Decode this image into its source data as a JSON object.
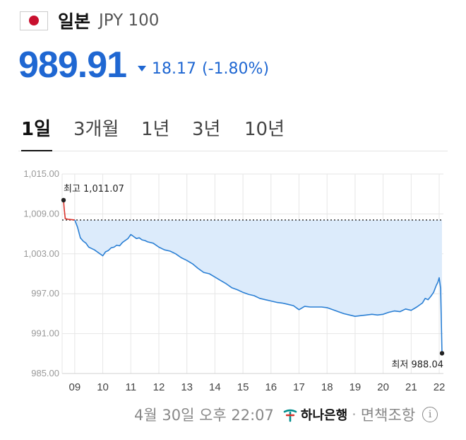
{
  "header": {
    "country": "일본",
    "unit": "JPY 100",
    "flag_icon": "japan-flag-icon"
  },
  "price": {
    "value": "989.91",
    "change": "18.17",
    "change_pct": "(-1.80%)",
    "direction": "down",
    "color": "#1f67d2"
  },
  "tabs": [
    {
      "label": "1일",
      "active": true
    },
    {
      "label": "3개월",
      "active": false
    },
    {
      "label": "1년",
      "active": false
    },
    {
      "label": "3년",
      "active": false
    },
    {
      "label": "10년",
      "active": false
    }
  ],
  "chart_data": {
    "type": "area",
    "y_ticks": [
      "1,015.00",
      "1,009.00",
      "1,003.00",
      "997.00",
      "991.00",
      "985.00"
    ],
    "x_ticks": [
      "09",
      "10",
      "11",
      "12",
      "13",
      "14",
      "15",
      "16",
      "17",
      "18",
      "19",
      "20",
      "21",
      "22"
    ],
    "ylim": [
      985,
      1015
    ],
    "xlim": [
      8.55,
      22.15
    ],
    "reference_value": 1008.08,
    "high_label": "최고 1,011.07",
    "low_label": "최저 988.04",
    "high": {
      "x": 8.6,
      "y": 1011.07
    },
    "low": {
      "x": 22.1,
      "y": 988.04
    },
    "line_color": "#2a7fd4",
    "fill_color": "#dcebfb",
    "pre_open_color": "#d9322b",
    "pre_open_points": [
      [
        8.6,
        1011.07
      ],
      [
        8.62,
        1009.9
      ],
      [
        8.66,
        1008.3
      ],
      [
        8.75,
        1008.2
      ],
      [
        9.0,
        1008.1
      ]
    ],
    "points": [
      [
        9.0,
        1008.1
      ],
      [
        9.1,
        1007.0
      ],
      [
        9.2,
        1005.4
      ],
      [
        9.3,
        1004.9
      ],
      [
        9.4,
        1004.6
      ],
      [
        9.5,
        1004.0
      ],
      [
        9.6,
        1003.8
      ],
      [
        9.7,
        1003.6
      ],
      [
        9.8,
        1003.3
      ],
      [
        9.9,
        1003.0
      ],
      [
        10.0,
        1002.7
      ],
      [
        10.1,
        1003.3
      ],
      [
        10.2,
        1003.5
      ],
      [
        10.3,
        1003.9
      ],
      [
        10.4,
        1004.0
      ],
      [
        10.5,
        1004.3
      ],
      [
        10.6,
        1004.2
      ],
      [
        10.7,
        1004.7
      ],
      [
        10.8,
        1005.0
      ],
      [
        10.9,
        1005.3
      ],
      [
        11.0,
        1005.9
      ],
      [
        11.1,
        1005.6
      ],
      [
        11.2,
        1005.3
      ],
      [
        11.3,
        1005.4
      ],
      [
        11.4,
        1005.1
      ],
      [
        11.5,
        1005.0
      ],
      [
        11.6,
        1004.8
      ],
      [
        11.8,
        1004.6
      ],
      [
        12.0,
        1004.0
      ],
      [
        12.2,
        1003.6
      ],
      [
        12.4,
        1003.4
      ],
      [
        12.6,
        1003.0
      ],
      [
        12.8,
        1002.4
      ],
      [
        13.0,
        1002.0
      ],
      [
        13.2,
        1001.5
      ],
      [
        13.4,
        1000.8
      ],
      [
        13.6,
        1000.2
      ],
      [
        13.8,
        1000.0
      ],
      [
        14.0,
        999.5
      ],
      [
        14.2,
        999.0
      ],
      [
        14.4,
        998.5
      ],
      [
        14.6,
        997.9
      ],
      [
        14.8,
        997.6
      ],
      [
        15.0,
        997.2
      ],
      [
        15.2,
        996.9
      ],
      [
        15.4,
        996.7
      ],
      [
        15.6,
        996.3
      ],
      [
        15.8,
        996.1
      ],
      [
        16.0,
        995.9
      ],
      [
        16.2,
        995.7
      ],
      [
        16.4,
        995.6
      ],
      [
        16.6,
        995.4
      ],
      [
        16.8,
        995.2
      ],
      [
        17.0,
        994.6
      ],
      [
        17.2,
        995.1
      ],
      [
        17.4,
        995.0
      ],
      [
        17.6,
        995.0
      ],
      [
        17.8,
        995.0
      ],
      [
        18.0,
        994.9
      ],
      [
        18.2,
        994.6
      ],
      [
        18.4,
        994.3
      ],
      [
        18.6,
        994.0
      ],
      [
        18.8,
        993.8
      ],
      [
        19.0,
        993.6
      ],
      [
        19.2,
        993.7
      ],
      [
        19.4,
        993.8
      ],
      [
        19.6,
        993.9
      ],
      [
        19.8,
        993.8
      ],
      [
        20.0,
        993.9
      ],
      [
        20.2,
        994.2
      ],
      [
        20.4,
        994.4
      ],
      [
        20.6,
        994.3
      ],
      [
        20.8,
        994.7
      ],
      [
        21.0,
        994.5
      ],
      [
        21.2,
        995.0
      ],
      [
        21.4,
        995.6
      ],
      [
        21.5,
        996.3
      ],
      [
        21.6,
        996.1
      ],
      [
        21.7,
        996.6
      ],
      [
        21.8,
        997.2
      ],
      [
        21.9,
        998.3
      ],
      [
        21.95,
        998.7
      ],
      [
        22.0,
        999.4
      ],
      [
        22.03,
        998.5
      ],
      [
        22.05,
        997.8
      ],
      [
        22.07,
        994.0
      ],
      [
        22.1,
        988.04
      ]
    ],
    "grid": true
  },
  "footer": {
    "timestamp": "4월 30일 오후 22:07",
    "bank": "하나은행",
    "separator": "·",
    "disclaimer": "면책조항",
    "info_glyph": "i"
  }
}
